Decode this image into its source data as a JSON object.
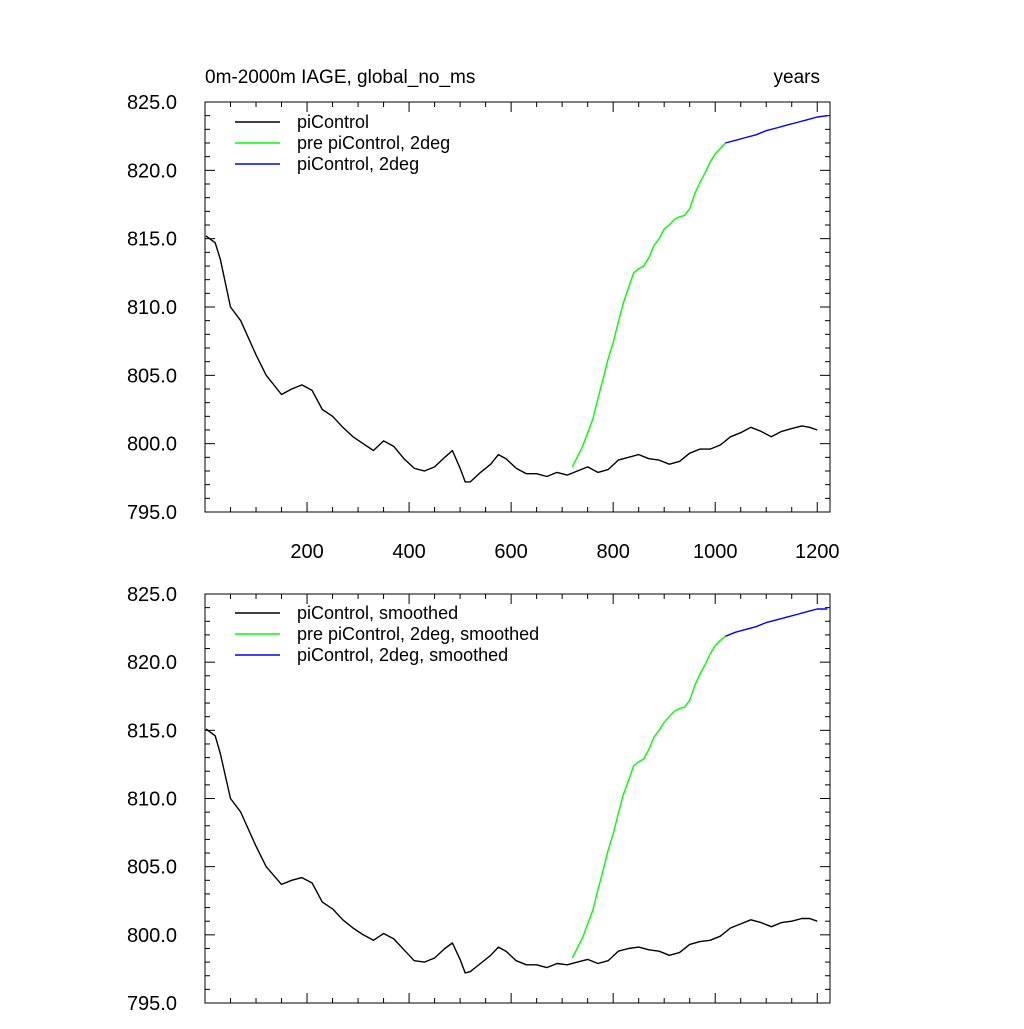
{
  "chart_data": [
    {
      "type": "line",
      "title_left": "0m-2000m IAGE, global_no_ms",
      "title_right": "years",
      "xlim": [
        0,
        1225
      ],
      "ylim": [
        795.0,
        825.0
      ],
      "xticks": [
        200,
        400,
        600,
        800,
        1000,
        1200
      ],
      "xtick_labels": [
        "200",
        "400",
        "600",
        "800",
        "1000",
        "1200"
      ],
      "yticks": [
        795,
        800,
        805,
        810,
        815,
        820,
        825
      ],
      "ytick_labels": [
        "795.0",
        "800.0",
        "805.0",
        "810.0",
        "815.0",
        "820.0",
        "825.0"
      ],
      "legend_position": "top-left",
      "series": [
        {
          "name": "piControl",
          "color": "#000000",
          "x": [
            2,
            20,
            30,
            50,
            70,
            100,
            120,
            150,
            170,
            190,
            210,
            230,
            250,
            270,
            290,
            310,
            330,
            350,
            370,
            390,
            410,
            430,
            450,
            470,
            485,
            500,
            510,
            520,
            540,
            560,
            575,
            590,
            610,
            630,
            650,
            670,
            690,
            710,
            730,
            750,
            770,
            790,
            810,
            830,
            850,
            870,
            890,
            910,
            930,
            950,
            970,
            990,
            1010,
            1030,
            1050,
            1070,
            1090,
            1110,
            1130,
            1150,
            1170,
            1185,
            1200
          ],
          "y": [
            815.2,
            814.7,
            813.5,
            810.0,
            809.0,
            806.5,
            805.0,
            803.6,
            804.0,
            804.3,
            803.9,
            802.5,
            802.0,
            801.2,
            800.5,
            800.0,
            799.5,
            800.2,
            799.8,
            798.9,
            798.2,
            798.0,
            798.3,
            799.0,
            799.5,
            798.2,
            797.2,
            797.2,
            797.9,
            798.5,
            799.2,
            798.9,
            798.2,
            797.8,
            797.8,
            797.6,
            797.9,
            797.7,
            798.0,
            798.3,
            797.9,
            798.1,
            798.8,
            799.0,
            799.2,
            798.9,
            798.8,
            798.5,
            798.7,
            799.3,
            799.6,
            799.6,
            799.9,
            800.5,
            800.8,
            801.2,
            800.9,
            800.5,
            800.9,
            801.1,
            801.3,
            801.2,
            801.0
          ]
        },
        {
          "name": "pre piControl, 2deg",
          "color": "#00ff00",
          "x": [
            720,
            740,
            760,
            770,
            780,
            790,
            800,
            810,
            820,
            830,
            840,
            850,
            860,
            870,
            880,
            890,
            900,
            910,
            920,
            930,
            940,
            950,
            960,
            970,
            980,
            990,
            1000,
            1010,
            1020
          ],
          "y": [
            798.3,
            799.8,
            801.8,
            803.3,
            804.7,
            806.2,
            807.4,
            808.9,
            810.3,
            811.4,
            812.5,
            812.8,
            813.0,
            813.6,
            814.5,
            815.0,
            815.7,
            816.0,
            816.4,
            816.6,
            816.7,
            817.2,
            818.3,
            819.1,
            819.8,
            820.6,
            821.2,
            821.6,
            822.0
          ]
        },
        {
          "name": "piControl, 2deg",
          "color": "#0000ff",
          "x": [
            1020,
            1040,
            1060,
            1080,
            1100,
            1120,
            1140,
            1160,
            1180,
            1200,
            1220
          ],
          "y": [
            822.0,
            822.2,
            822.4,
            822.6,
            822.9,
            823.1,
            823.3,
            823.5,
            823.7,
            823.9,
            824.0
          ]
        }
      ]
    },
    {
      "type": "line",
      "xlim": [
        0,
        1225
      ],
      "ylim": [
        795.0,
        825.0
      ],
      "xticks": [
        200,
        400,
        600,
        800,
        1000,
        1200
      ],
      "yticks": [
        795,
        800,
        805,
        810,
        815,
        820,
        825
      ],
      "ytick_labels": [
        "795.0",
        "800.0",
        "805.0",
        "810.0",
        "815.0",
        "820.0",
        "825.0"
      ],
      "legend_position": "top-left",
      "series": [
        {
          "name": "piControl, smoothed",
          "color": "#000000",
          "x": [
            2,
            20,
            30,
            50,
            70,
            100,
            120,
            150,
            170,
            190,
            210,
            230,
            250,
            270,
            290,
            310,
            330,
            350,
            370,
            390,
            410,
            430,
            450,
            470,
            485,
            500,
            510,
            520,
            540,
            560,
            575,
            590,
            610,
            630,
            650,
            670,
            690,
            710,
            730,
            750,
            770,
            790,
            810,
            830,
            850,
            870,
            890,
            910,
            930,
            950,
            970,
            990,
            1010,
            1030,
            1050,
            1070,
            1090,
            1110,
            1130,
            1150,
            1170,
            1185,
            1200
          ],
          "y": [
            815.1,
            814.6,
            813.3,
            810.0,
            809.0,
            806.5,
            805.0,
            803.7,
            804.0,
            804.2,
            803.8,
            802.4,
            801.9,
            801.1,
            800.5,
            800.0,
            799.6,
            800.1,
            799.7,
            798.9,
            798.1,
            798.0,
            798.3,
            799.0,
            799.4,
            798.2,
            797.2,
            797.3,
            797.9,
            798.5,
            799.1,
            798.8,
            798.1,
            797.8,
            797.8,
            797.6,
            797.9,
            797.8,
            798.0,
            798.2,
            797.9,
            798.1,
            798.8,
            799.0,
            799.1,
            798.9,
            798.8,
            798.5,
            798.7,
            799.3,
            799.5,
            799.6,
            799.9,
            800.5,
            800.8,
            801.1,
            800.9,
            800.6,
            800.9,
            801.0,
            801.2,
            801.2,
            801.0
          ]
        },
        {
          "name": "pre piControl, 2deg, smoothed",
          "color": "#00ff00",
          "x": [
            720,
            740,
            760,
            770,
            780,
            790,
            800,
            810,
            820,
            830,
            840,
            850,
            860,
            870,
            880,
            890,
            900,
            910,
            920,
            930,
            940,
            950,
            960,
            970,
            980,
            990,
            1000,
            1010,
            1020
          ],
          "y": [
            798.3,
            799.8,
            801.8,
            803.3,
            804.7,
            806.2,
            807.4,
            808.9,
            810.3,
            811.3,
            812.4,
            812.7,
            812.9,
            813.6,
            814.5,
            815.0,
            815.6,
            816.0,
            816.4,
            816.6,
            816.7,
            817.2,
            818.3,
            819.1,
            819.8,
            820.6,
            821.2,
            821.6,
            821.9
          ]
        },
        {
          "name": "piControl, 2deg, smoothed",
          "color": "#0000ff",
          "x": [
            1020,
            1040,
            1060,
            1080,
            1100,
            1120,
            1140,
            1160,
            1180,
            1200,
            1220
          ],
          "y": [
            821.9,
            822.2,
            822.4,
            822.6,
            822.9,
            823.1,
            823.3,
            823.5,
            823.7,
            823.9,
            823.9
          ]
        }
      ]
    }
  ]
}
